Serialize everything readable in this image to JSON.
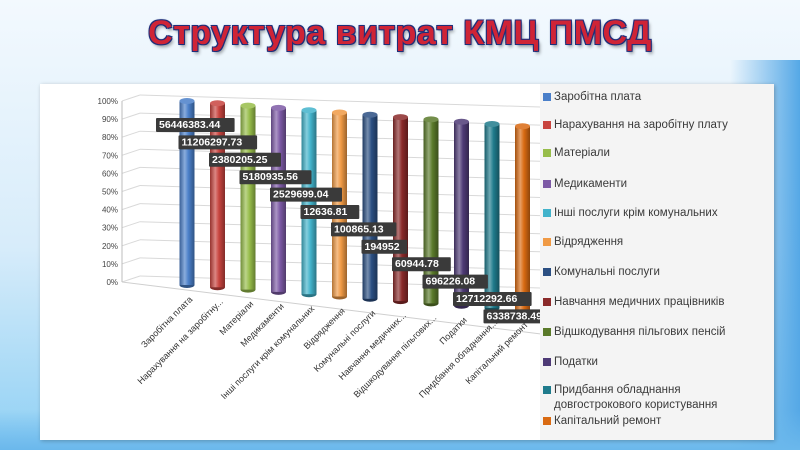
{
  "title": "Структура витрат КМЦ ПМСД",
  "chart_data": {
    "type": "bar",
    "stacking": "percent",
    "style": "3d-cylinder",
    "grid": true,
    "legend_position": "right",
    "ylim": [
      0,
      100
    ],
    "yticks": [
      "0%",
      "10%",
      "20%",
      "30%",
      "40%",
      "50%",
      "60%",
      "70%",
      "80%",
      "90%",
      "100%"
    ],
    "categories": [
      "Заробітна плата",
      "Нарахування на заробітну...",
      "Матеріали",
      "Медикаменти",
      "Інші послуги крім комунальних",
      "Відрядження",
      "Комунальні послуги",
      "Навчання медичних...",
      "Відшкодування пільгових...",
      "Податки",
      "Придбання обладнання...",
      "Капітальний ремонт"
    ],
    "values": [
      56446383.44,
      11206297.73,
      2380205.25,
      5180935.56,
      2529699.04,
      12636.81,
      100865.13,
      194952,
      60944.78,
      696226.08,
      12712292.66,
      6338738.49
    ],
    "data_labels": [
      "56446383.44",
      "11206297.73",
      "2380205.25",
      "5180935.56",
      "2529699.04",
      "12636.81",
      "100865.13",
      "194952",
      "60944.78",
      "696226.08",
      "12712292.66",
      "6338738.49"
    ],
    "series": [
      {
        "name": "Заробітна плата",
        "color": "#4a7fc9"
      },
      {
        "name": "Нарахування на заробітну плату",
        "color": "#c8443f"
      },
      {
        "name": "Матеріали",
        "color": "#97bd4a"
      },
      {
        "name": "Медикаменти",
        "color": "#7d5aa6"
      },
      {
        "name": "Інші послуги крім комунальних",
        "color": "#42b3cb"
      },
      {
        "name": "Відрядження",
        "color": "#f09a45"
      },
      {
        "name": "Комунальні послуги",
        "color": "#2b4f82"
      },
      {
        "name": "Навчання медичних працівників",
        "color": "#8a2a2a"
      },
      {
        "name": "Відшкодування пільгових пенсій",
        "color": "#5a7a2a"
      },
      {
        "name": "Податки",
        "color": "#4e3a76"
      },
      {
        "name": "Придбання обладнання довгострокового користування",
        "color": "#1f7b8c"
      },
      {
        "name": "Капітальний ремонт",
        "color": "#d96a12"
      }
    ]
  }
}
